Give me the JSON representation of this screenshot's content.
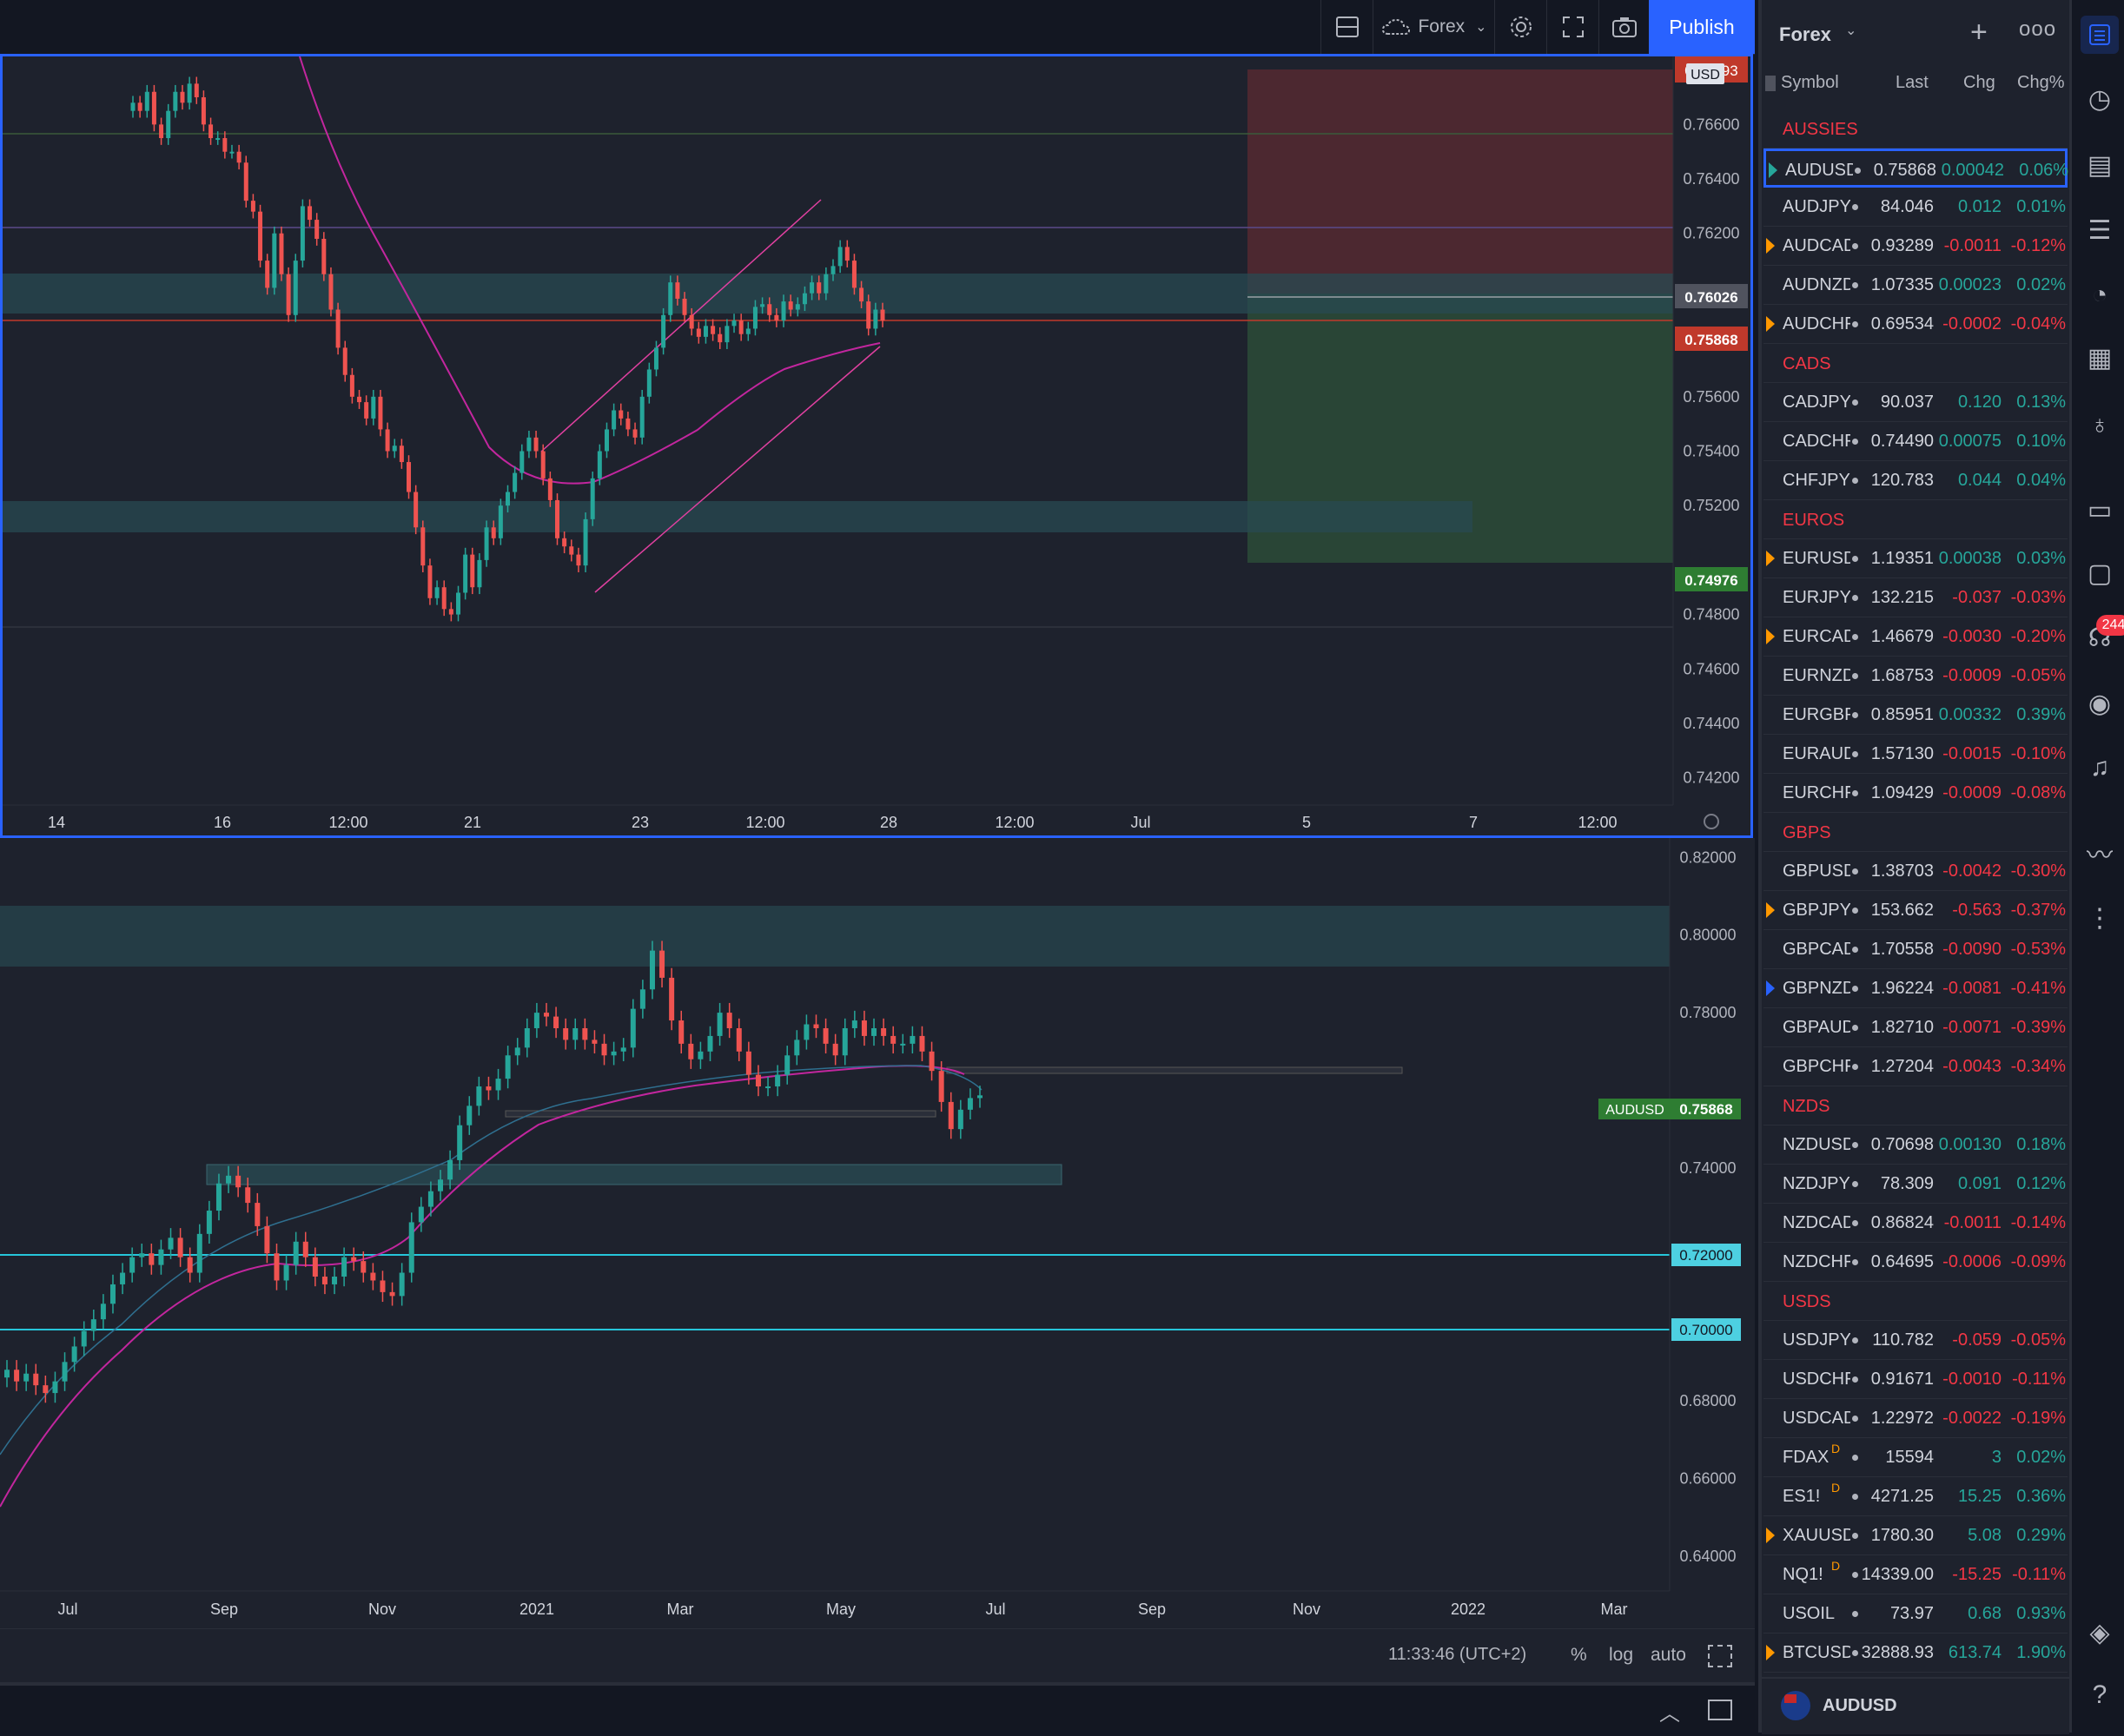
{
  "toolbar": {
    "symbol_group": "Forex",
    "publish_label": "Publish"
  },
  "pane1": {
    "currency_badge": "USD",
    "top_price_label": "0.76693",
    "price_ticks": [
      "0.76600",
      "0.76400",
      "0.76200",
      "0.76000",
      "0.75800",
      "0.75600",
      "0.75400",
      "0.75200",
      "0.75000",
      "0.74800",
      "0.74600",
      "0.74400",
      "0.74200"
    ],
    "label_level": "0.76026",
    "label_last": "0.75868",
    "label_stop": "0.74976",
    "time_ticks": [
      "14",
      "16",
      "12:00",
      "21",
      "23",
      "12:00",
      "28",
      "12:00",
      "Jul",
      "5",
      "7",
      "12:00"
    ]
  },
  "pane2": {
    "price_ticks": [
      "0.82000",
      "0.80000",
      "0.78000",
      "0.74000",
      "0.68000",
      "0.66000",
      "0.64000"
    ],
    "symbol_label": "AUDUSD",
    "last_price": "0.75868",
    "line_label_1": "0.72000",
    "line_label_2": "0.70000",
    "time_ticks": [
      "Jul",
      "Sep",
      "Nov",
      "2021",
      "Mar",
      "May",
      "Jul",
      "Sep",
      "Nov",
      "2022",
      "Mar"
    ]
  },
  "bottom": {
    "clock": "11:33:46 (UTC+2)",
    "percent": "%",
    "log": "log",
    "auto": "auto"
  },
  "watchlist": {
    "title": "Forex",
    "col_symbol": "Symbol",
    "col_last": "Last",
    "col_chg": "Chg",
    "col_chgp": "Chg%",
    "footer_symbol": "AUDUSD",
    "items": [
      {
        "section": "AUSSIES"
      },
      {
        "sym": "AUDUSD",
        "last": "0.75868",
        "chg": "0.00042",
        "chgp": "0.06%",
        "dir": "pos",
        "flag": "#26a69a",
        "selected": true
      },
      {
        "sym": "AUDJPY",
        "last": "84.046",
        "chg": "0.012",
        "chgp": "0.01%",
        "dir": "pos"
      },
      {
        "sym": "AUDCAD",
        "last": "0.93289",
        "chg": "-0.0011",
        "chgp": "-0.12%",
        "dir": "neg",
        "flag": "#ff9800"
      },
      {
        "sym": "AUDNZD",
        "last": "1.07335",
        "chg": "0.00023",
        "chgp": "0.02%",
        "dir": "pos"
      },
      {
        "sym": "AUDCHF",
        "last": "0.69534",
        "chg": "-0.0002",
        "chgp": "-0.04%",
        "dir": "neg",
        "flag": "#ff9800"
      },
      {
        "section": "CADS"
      },
      {
        "sym": "CADJPY",
        "last": "90.037",
        "chg": "0.120",
        "chgp": "0.13%",
        "dir": "pos"
      },
      {
        "sym": "CADCHF",
        "last": "0.74490",
        "chg": "0.00075",
        "chgp": "0.10%",
        "dir": "pos"
      },
      {
        "sym": "CHFJPY",
        "last": "120.783",
        "chg": "0.044",
        "chgp": "0.04%",
        "dir": "pos"
      },
      {
        "section": "EUROS"
      },
      {
        "sym": "EURUSD",
        "last": "1.19351",
        "chg": "0.00038",
        "chgp": "0.03%",
        "dir": "pos",
        "flag": "#ff9800"
      },
      {
        "sym": "EURJPY",
        "last": "132.215",
        "chg": "-0.037",
        "chgp": "-0.03%",
        "dir": "neg"
      },
      {
        "sym": "EURCAD",
        "last": "1.46679",
        "chg": "-0.0030",
        "chgp": "-0.20%",
        "dir": "neg",
        "flag": "#ff9800"
      },
      {
        "sym": "EURNZD",
        "last": "1.68753",
        "chg": "-0.0009",
        "chgp": "-0.05%",
        "dir": "neg"
      },
      {
        "sym": "EURGBP",
        "last": "0.85951",
        "chg": "0.00332",
        "chgp": "0.39%",
        "dir": "pos"
      },
      {
        "sym": "EURAUD",
        "last": "1.57130",
        "chg": "-0.0015",
        "chgp": "-0.10%",
        "dir": "neg"
      },
      {
        "sym": "EURCHF",
        "last": "1.09429",
        "chg": "-0.0009",
        "chgp": "-0.08%",
        "dir": "neg"
      },
      {
        "section": "GBPS"
      },
      {
        "sym": "GBPUSD",
        "last": "1.38703",
        "chg": "-0.0042",
        "chgp": "-0.30%",
        "dir": "neg"
      },
      {
        "sym": "GBPJPY",
        "last": "153.662",
        "chg": "-0.563",
        "chgp": "-0.37%",
        "dir": "neg",
        "flag": "#ff9800"
      },
      {
        "sym": "GBPCAD",
        "last": "1.70558",
        "chg": "-0.0090",
        "chgp": "-0.53%",
        "dir": "neg"
      },
      {
        "sym": "GBPNZD",
        "last": "1.96224",
        "chg": "-0.0081",
        "chgp": "-0.41%",
        "dir": "neg",
        "flag": "#2962ff"
      },
      {
        "sym": "GBPAUD",
        "last": "1.82710",
        "chg": "-0.0071",
        "chgp": "-0.39%",
        "dir": "neg"
      },
      {
        "sym": "GBPCHF",
        "last": "1.27204",
        "chg": "-0.0043",
        "chgp": "-0.34%",
        "dir": "neg"
      },
      {
        "section": "NZDS"
      },
      {
        "sym": "NZDUSD",
        "last": "0.70698",
        "chg": "0.00130",
        "chgp": "0.18%",
        "dir": "pos"
      },
      {
        "sym": "NZDJPY",
        "last": "78.309",
        "chg": "0.091",
        "chgp": "0.12%",
        "dir": "pos"
      },
      {
        "sym": "NZDCAD",
        "last": "0.86824",
        "chg": "-0.0011",
        "chgp": "-0.14%",
        "dir": "neg"
      },
      {
        "sym": "NZDCHF",
        "last": "0.64695",
        "chg": "-0.0006",
        "chgp": "-0.09%",
        "dir": "neg"
      },
      {
        "section": "USDS"
      },
      {
        "sym": "USDJPY",
        "last": "110.782",
        "chg": "-0.059",
        "chgp": "-0.05%",
        "dir": "neg"
      },
      {
        "sym": "USDCHF",
        "last": "0.91671",
        "chg": "-0.0010",
        "chgp": "-0.11%",
        "dir": "neg"
      },
      {
        "sym": "USDCAD",
        "last": "1.22972",
        "chg": "-0.0022",
        "chgp": "-0.19%",
        "dir": "neg"
      },
      {
        "sym": "FDAX",
        "badge": "D",
        "last": "15594",
        "chg": "3",
        "chgp": "0.02%",
        "dir": "pos"
      },
      {
        "sym": "ES1!",
        "badge": "D",
        "last": "4271.25",
        "chg": "15.25",
        "chgp": "0.36%",
        "dir": "pos"
      },
      {
        "sym": "XAUUSD",
        "last": "1780.30",
        "chg": "5.08",
        "chgp": "0.29%",
        "dir": "pos",
        "flag": "#ff9800"
      },
      {
        "sym": "NQ1!",
        "badge": "D",
        "last": "14339.00",
        "chg": "-15.25",
        "chgp": "-0.11%",
        "dir": "neg"
      },
      {
        "sym": "USOIL",
        "last": "73.97",
        "chg": "0.68",
        "chgp": "0.93%",
        "dir": "pos"
      },
      {
        "sym": "BTCUSD",
        "last": "32888.93",
        "chg": "613.74",
        "chgp": "1.90%",
        "dir": "pos",
        "flag": "#ff9800"
      }
    ]
  },
  "iconbar": {
    "notification_count": "244",
    "icons": [
      "watchlist-icon",
      "alarm-clock-icon",
      "news-icon",
      "ideas-icon",
      "data-window-icon",
      "calendar-icon",
      "lightbulb-icon",
      "chat-icon",
      "messages-icon",
      "streams-icon",
      "broadcast-icon",
      "notification-bell-icon",
      "chart-compare-icon",
      "dom-icon",
      "layers-icon",
      "help-icon"
    ]
  },
  "chart_data": [
    {
      "type": "candlestick",
      "symbol": "AUDUSD",
      "ylim": [
        0.741,
        0.7685
      ],
      "yticks": [
        0.766,
        0.764,
        0.762,
        0.76,
        0.758,
        0.756,
        0.754,
        0.752,
        0.75,
        0.748,
        0.746,
        0.744,
        0.742
      ],
      "last": 0.75868,
      "levels": [
        0.76026,
        0.74976
      ],
      "closes": [
        0.7668,
        0.7665,
        0.7672,
        0.766,
        0.7655,
        0.7665,
        0.7672,
        0.7668,
        0.7675,
        0.767,
        0.766,
        0.7655,
        0.7655,
        0.765,
        0.765,
        0.7646,
        0.7632,
        0.7628,
        0.761,
        0.76,
        0.762,
        0.7605,
        0.759,
        0.761,
        0.763,
        0.7625,
        0.7618,
        0.7605,
        0.7592,
        0.7578,
        0.7568,
        0.756,
        0.7558,
        0.7552,
        0.756,
        0.7548,
        0.754,
        0.7542,
        0.7536,
        0.7525,
        0.7512,
        0.7498,
        0.7486,
        0.749,
        0.7482,
        0.748,
        0.7488,
        0.7502,
        0.749,
        0.75,
        0.7512,
        0.7508,
        0.752,
        0.7525,
        0.7532,
        0.754,
        0.7545,
        0.754,
        0.753,
        0.7522,
        0.7508,
        0.7505,
        0.7502,
        0.7498,
        0.7515,
        0.753,
        0.754,
        0.7548,
        0.7555,
        0.7552,
        0.7548,
        0.7545,
        0.756,
        0.757,
        0.7578,
        0.759,
        0.7602,
        0.7596,
        0.759,
        0.7585,
        0.7582,
        0.7586,
        0.7583,
        0.758,
        0.7586,
        0.7588,
        0.7583,
        0.7585,
        0.7593,
        0.7594,
        0.759,
        0.7588,
        0.7595,
        0.7592,
        0.7594,
        0.7598,
        0.7602,
        0.7598,
        0.7605,
        0.7608,
        0.7615,
        0.761,
        0.76,
        0.7595,
        0.7585,
        0.7592,
        0.7588
      ],
      "x_ticks": [
        "14",
        "16",
        "12:00",
        "21",
        "23",
        "12:00",
        "28",
        "12:00",
        "Jul",
        "5",
        "7",
        "12:00"
      ]
    },
    {
      "type": "candlestick",
      "symbol": "AUDUSD",
      "ylim": [
        0.631,
        0.825
      ],
      "yticks": [
        0.82,
        0.8,
        0.78,
        0.76,
        0.74,
        0.72,
        0.7,
        0.68,
        0.66,
        0.64
      ],
      "last": 0.75868,
      "levels": [
        0.72,
        0.7
      ],
      "closes": [
        0.688,
        0.685,
        0.687,
        0.684,
        0.682,
        0.685,
        0.69,
        0.694,
        0.698,
        0.701,
        0.705,
        0.71,
        0.713,
        0.717,
        0.718,
        0.715,
        0.719,
        0.722,
        0.717,
        0.713,
        0.723,
        0.729,
        0.736,
        0.738,
        0.735,
        0.731,
        0.725,
        0.718,
        0.711,
        0.715,
        0.721,
        0.717,
        0.712,
        0.71,
        0.712,
        0.717,
        0.716,
        0.713,
        0.711,
        0.708,
        0.707,
        0.713,
        0.726,
        0.73,
        0.734,
        0.737,
        0.742,
        0.751,
        0.756,
        0.761,
        0.76,
        0.763,
        0.769,
        0.771,
        0.776,
        0.78,
        0.779,
        0.776,
        0.773,
        0.776,
        0.773,
        0.772,
        0.769,
        0.77,
        0.771,
        0.781,
        0.786,
        0.796,
        0.789,
        0.778,
        0.772,
        0.768,
        0.77,
        0.774,
        0.78,
        0.776,
        0.77,
        0.764,
        0.761,
        0.761,
        0.764,
        0.769,
        0.773,
        0.777,
        0.776,
        0.772,
        0.769,
        0.776,
        0.778,
        0.774,
        0.776,
        0.774,
        0.772,
        0.772,
        0.774,
        0.77,
        0.765,
        0.757,
        0.75,
        0.755,
        0.758,
        0.7587
      ],
      "x_ticks": [
        "Jul",
        "Sep",
        "Nov",
        "2021",
        "Mar",
        "May",
        "Jul",
        "Sep",
        "Nov",
        "2022",
        "Mar"
      ]
    }
  ]
}
